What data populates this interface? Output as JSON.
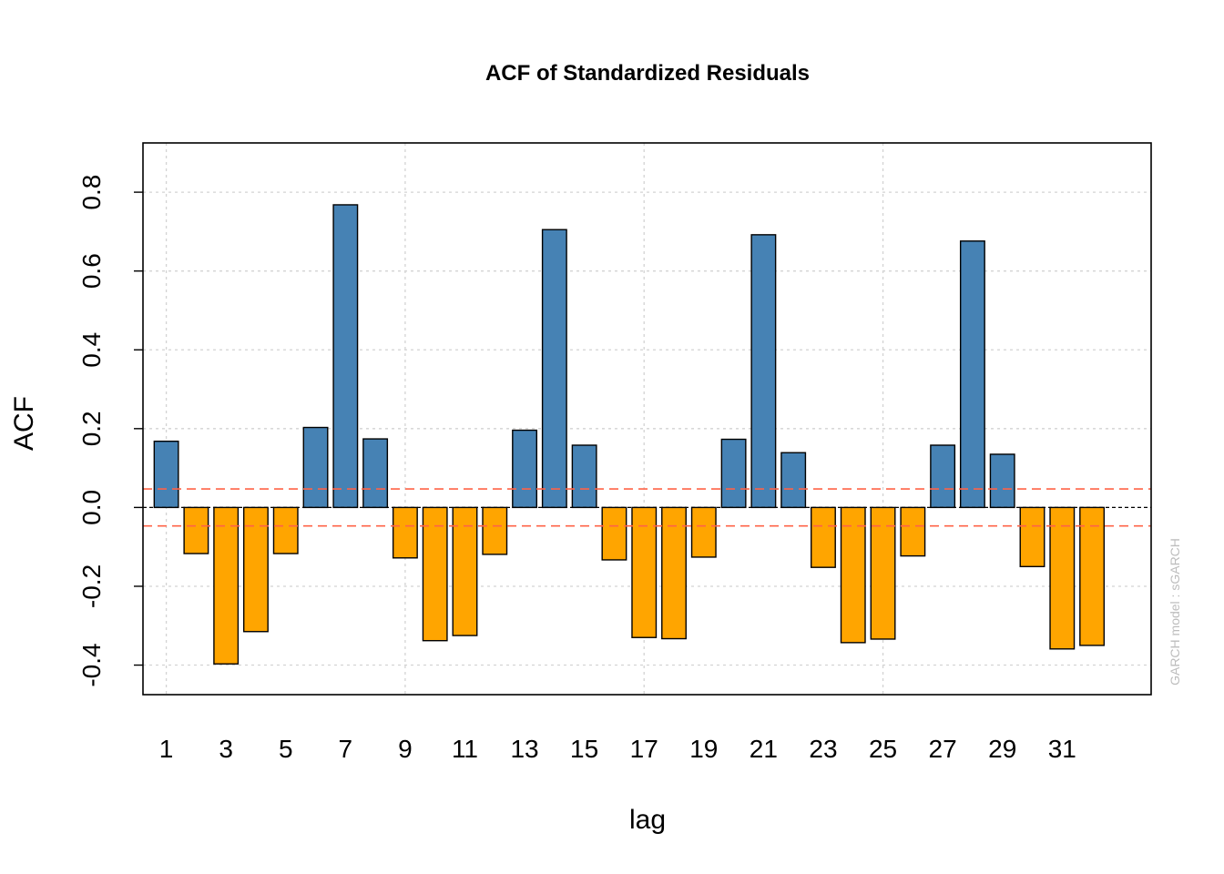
{
  "chart_data": {
    "type": "bar",
    "title": "ACF of Standardized Residuals",
    "xlabel": "lag",
    "ylabel": "ACF",
    "watermark": "GARCH model : sGARCH",
    "x": [
      1,
      2,
      3,
      4,
      5,
      6,
      7,
      8,
      9,
      10,
      11,
      12,
      13,
      14,
      15,
      16,
      17,
      18,
      19,
      20,
      21,
      22,
      23,
      24,
      25,
      26,
      27,
      28,
      29,
      30,
      31,
      32
    ],
    "values": [
      0.168,
      -0.117,
      -0.397,
      -0.315,
      -0.117,
      0.203,
      0.768,
      0.174,
      -0.128,
      -0.338,
      -0.325,
      -0.119,
      0.196,
      0.705,
      0.158,
      -0.133,
      -0.33,
      -0.333,
      -0.126,
      0.173,
      0.692,
      0.139,
      -0.152,
      -0.343,
      -0.334,
      -0.123,
      0.158,
      0.676,
      0.135,
      -0.15,
      -0.359,
      -0.35
    ],
    "x_tick_labels": [
      "1",
      "3",
      "5",
      "7",
      "9",
      "11",
      "13",
      "15",
      "17",
      "19",
      "21",
      "23",
      "25",
      "27",
      "29",
      "31"
    ],
    "x_tick_values": [
      1,
      3,
      5,
      7,
      9,
      11,
      13,
      15,
      17,
      19,
      21,
      23,
      25,
      27,
      29,
      31
    ],
    "y_ticks": [
      -0.4,
      -0.2,
      0.0,
      0.2,
      0.4,
      0.6,
      0.8
    ],
    "y_tick_labels": [
      "-0.4",
      "-0.2",
      "0.0",
      "0.2",
      "0.4",
      "0.6",
      "0.8"
    ],
    "ylim": [
      -0.475,
      0.925
    ],
    "confidence_band": 0.047,
    "grid": true,
    "colors": {
      "positive": "#4682b4",
      "negative": "#ffa500",
      "confidence": "#ff6347",
      "grid": "#d3d3d3"
    }
  }
}
